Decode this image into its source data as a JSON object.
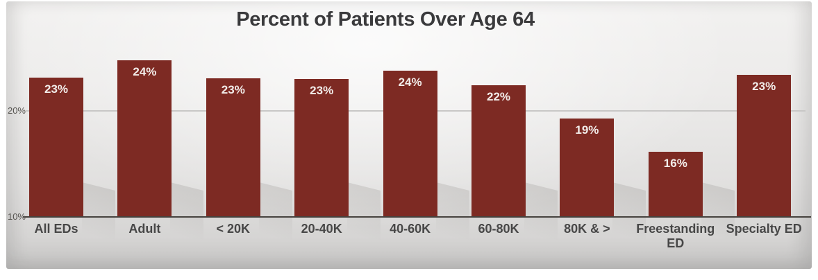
{
  "chart_data": {
    "type": "bar",
    "title": "Percent of Patients Over Age 64",
    "categories": [
      "All EDs",
      "Adult",
      "< 20K",
      "20-40K",
      "40-60K",
      "60-80K",
      "80K & >",
      "Freestanding ED",
      "Specialty ED"
    ],
    "values": [
      23,
      24,
      23,
      23,
      24,
      22,
      19,
      16,
      23
    ],
    "data_labels": [
      "23%",
      "24%",
      "23%",
      "23%",
      "24%",
      "22%",
      "19%",
      "16%",
      "23%"
    ],
    "pixel_heights": [
      201,
      226,
      200,
      199,
      211,
      190,
      142,
      94,
      205
    ],
    "xlabel": "",
    "ylabel": "",
    "y_axis": {
      "ticks": [
        {
          "label": "20%",
          "value": 20
        },
        {
          "label": "10%",
          "value": 10
        }
      ],
      "min": 10,
      "max": 26,
      "gridline_at": 20,
      "baseline_at": 10
    },
    "legend": "none",
    "grid": "single horizontal gridline at 20%",
    "colors": {
      "bar": "#7d2a23",
      "bar_label": "#f2ece9",
      "title": "#3a3a3c",
      "axis_label": "#474747",
      "tick_label": "#55534f",
      "gridline": "#c8c7c6",
      "axis_line": "#46423e",
      "background": "#e9e8e7"
    }
  }
}
